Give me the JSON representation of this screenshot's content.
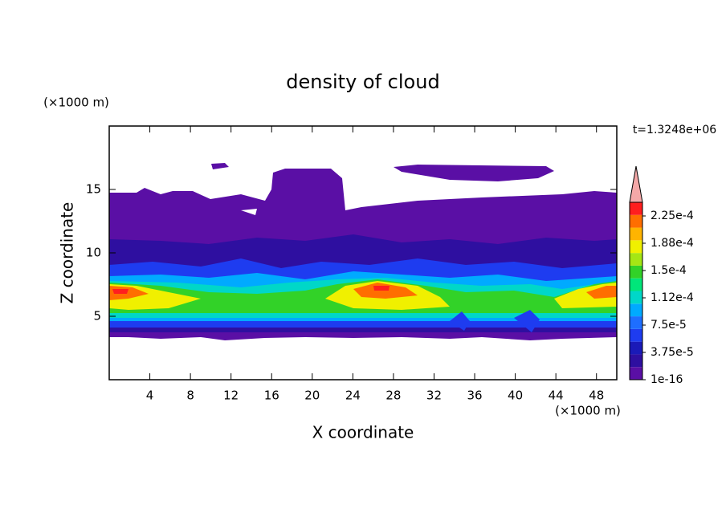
{
  "chart_data": {
    "type": "contour",
    "title": "density of cloud",
    "xlabel": "X coordinate",
    "ylabel": "Z coordinate",
    "xunits": "(×1000 m)",
    "yunits": "(×1000 m)",
    "annotation": "t=1.3248e+06",
    "xlim": [
      0,
      50
    ],
    "ylim": [
      0,
      20
    ],
    "xticks": [
      4,
      8,
      12,
      16,
      20,
      24,
      28,
      32,
      36,
      40,
      44,
      48
    ],
    "yticks": [
      5,
      10,
      15
    ],
    "colorbar": {
      "clim": [
        1e-16,
        0.00024375
      ],
      "colors": [
        "#5a0fa5",
        "#2e0fa0",
        "#1a1ab8",
        "#1e3cf0",
        "#1e6eff",
        "#00aaff",
        "#00d7c8",
        "#00e67a",
        "#32d228",
        "#a5e614",
        "#f0f000",
        "#ffb400",
        "#ff6e00",
        "#ff1e1e"
      ],
      "extend_color": "#f4a8a8",
      "ticks": [
        {
          "value": 1e-16,
          "label": "1e-16"
        },
        {
          "value": 3.75e-05,
          "label": "3.75e-5"
        },
        {
          "value": 7.5e-05,
          "label": "7.5e-5"
        },
        {
          "value": 0.0001125,
          "label": "1.12e-4"
        },
        {
          "value": 0.00015,
          "label": "1.5e-4"
        },
        {
          "value": 0.0001875,
          "label": "1.88e-4"
        },
        {
          "value": 0.000225,
          "label": "2.25e-4"
        }
      ]
    }
  }
}
